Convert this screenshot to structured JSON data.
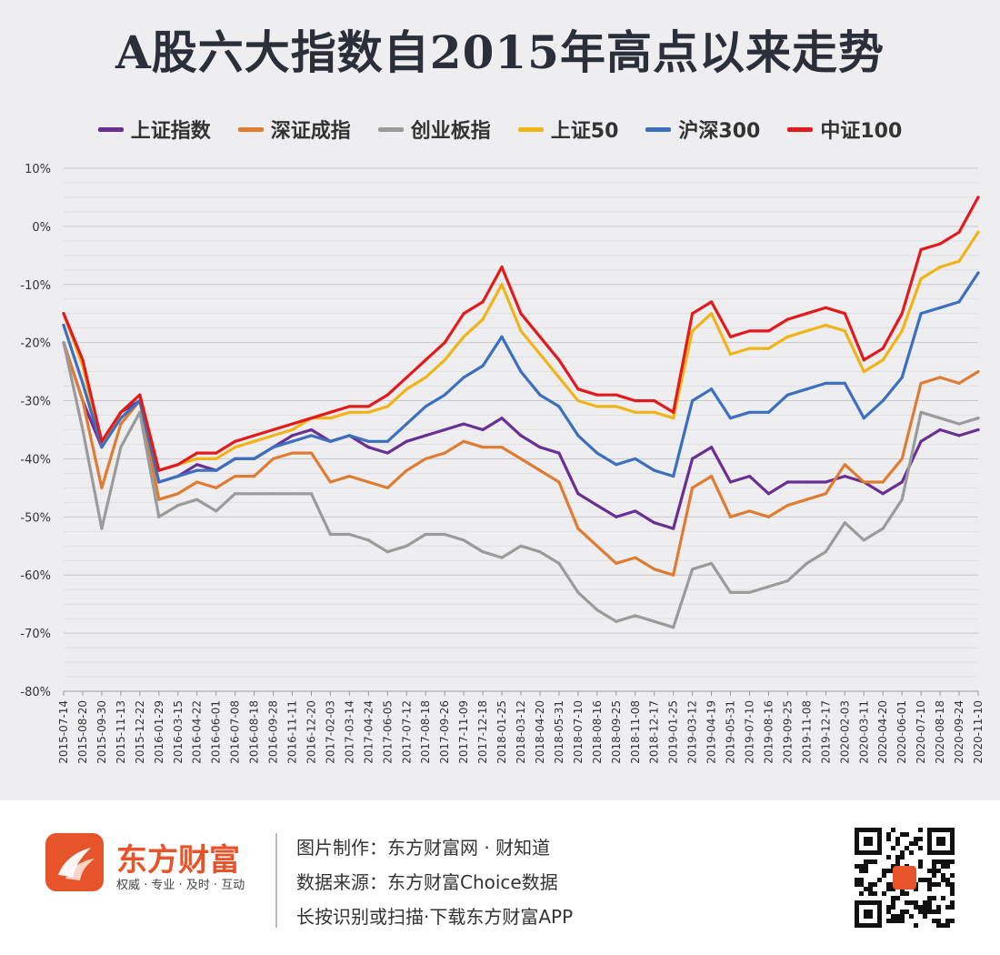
{
  "title": "A股六大指数自2015年高点以来走势",
  "colors": {
    "background": "#eeeef0",
    "brand": "#e8542a",
    "title": "#2b2f3a"
  },
  "footer": {
    "brand_name": "东方财富",
    "slogan": "权威 · 专业 · 及时 · 互动",
    "credit_made_by": "图片制作：东方财富网 · 财知道",
    "credit_source": "数据来源：东方财富Choice数据",
    "credit_download": "长按识别或扫描·下载东方财富APP",
    "logo_icon": "eastmoney-logo-icon",
    "qr_icon": "qr-code-icon"
  },
  "chart_data": {
    "type": "line",
    "title": "A股六大指数自2015年高点以来走势",
    "ylim": [
      -80,
      10
    ],
    "yticks": [
      "10%",
      "0%",
      "-10%",
      "-20%",
      "-30%",
      "-40%",
      "-50%",
      "-60%",
      "-70%",
      "-80%"
    ],
    "y_tick_values": [
      10,
      0,
      -10,
      -20,
      -30,
      -40,
      -50,
      -60,
      -70,
      -80
    ],
    "legend_position": "top",
    "grid": true,
    "x": [
      "2015-07-14",
      "2015-08-20",
      "2015-09-30",
      "2015-11-13",
      "2015-12-22",
      "2016-01-29",
      "2016-03-15",
      "2016-04-22",
      "2016-06-01",
      "2016-07-08",
      "2016-08-18",
      "2016-09-28",
      "2016-11-11",
      "2016-12-20",
      "2017-02-03",
      "2017-03-14",
      "2017-04-24",
      "2017-06-05",
      "2017-07-12",
      "2017-08-18",
      "2017-09-26",
      "2017-11-09",
      "2017-12-18",
      "2018-01-25",
      "2018-03-12",
      "2018-04-20",
      "2018-05-31",
      "2018-07-10",
      "2018-08-16",
      "2018-09-25",
      "2018-11-08",
      "2018-12-17",
      "2019-01-25",
      "2019-03-12",
      "2019-04-19",
      "2019-05-31",
      "2019-07-10",
      "2019-08-16",
      "2019-09-25",
      "2019-11-08",
      "2019-12-17",
      "2020-02-03",
      "2020-03-11",
      "2020-04-20",
      "2020-06-01",
      "2020-07-10",
      "2020-08-18",
      "2020-09-24",
      "2020-11-10"
    ],
    "series": [
      {
        "name": "上证指数",
        "color": "#6a2f93",
        "values": [
          -20,
          -30,
          -38,
          -32,
          -30,
          -44,
          -43,
          -41,
          -42,
          -40,
          -40,
          -38,
          -36,
          -35,
          -37,
          -36,
          -38,
          -39,
          -37,
          -36,
          -35,
          -34,
          -35,
          -33,
          -36,
          -38,
          -39,
          -46,
          -48,
          -50,
          -49,
          -51,
          -52,
          -40,
          -38,
          -44,
          -43,
          -46,
          -44,
          -44,
          -44,
          -43,
          -44,
          -46,
          -44,
          -37,
          -35,
          -36,
          -35
        ]
      },
      {
        "name": "深证成指",
        "color": "#e07b32",
        "values": [
          -20,
          -30,
          -45,
          -34,
          -30,
          -47,
          -46,
          -44,
          -45,
          -43,
          -43,
          -40,
          -39,
          -39,
          -44,
          -43,
          -44,
          -45,
          -42,
          -40,
          -39,
          -37,
          -38,
          -38,
          -40,
          -42,
          -44,
          -52,
          -55,
          -58,
          -57,
          -59,
          -60,
          -45,
          -43,
          -50,
          -49,
          -50,
          -48,
          -47,
          -46,
          -41,
          -44,
          -44,
          -40,
          -27,
          -26,
          -27,
          -25
        ]
      },
      {
        "name": "创业板指",
        "color": "#9b9b9b",
        "values": [
          -20,
          -35,
          -52,
          -38,
          -32,
          -50,
          -48,
          -47,
          -49,
          -46,
          -46,
          -46,
          -46,
          -46,
          -53,
          -53,
          -54,
          -56,
          -55,
          -53,
          -53,
          -54,
          -56,
          -57,
          -55,
          -56,
          -58,
          -63,
          -66,
          -68,
          -67,
          -68,
          -69,
          -59,
          -58,
          -63,
          -63,
          -62,
          -61,
          -58,
          -56,
          -51,
          -54,
          -52,
          -47,
          -32,
          -33,
          -34,
          -33
        ]
      },
      {
        "name": "上证50",
        "color": "#f0b416",
        "values": [
          -15,
          -24,
          -38,
          -32,
          -29,
          -42,
          -41,
          -40,
          -40,
          -38,
          -37,
          -36,
          -35,
          -33,
          -33,
          -32,
          -32,
          -31,
          -28,
          -26,
          -23,
          -19,
          -16,
          -10,
          -18,
          -22,
          -26,
          -30,
          -31,
          -31,
          -32,
          -32,
          -33,
          -18,
          -15,
          -22,
          -21,
          -21,
          -19,
          -18,
          -17,
          -18,
          -25,
          -23,
          -18,
          -9,
          -7,
          -6,
          -1
        ]
      },
      {
        "name": "沪深300",
        "color": "#3d6fbf",
        "values": [
          -17,
          -27,
          -38,
          -33,
          -30,
          -44,
          -43,
          -42,
          -42,
          -40,
          -40,
          -38,
          -37,
          -36,
          -37,
          -36,
          -37,
          -37,
          -34,
          -31,
          -29,
          -26,
          -24,
          -19,
          -25,
          -29,
          -31,
          -36,
          -39,
          -41,
          -40,
          -42,
          -43,
          -30,
          -28,
          -33,
          -32,
          -32,
          -29,
          -28,
          -27,
          -27,
          -33,
          -30,
          -26,
          -15,
          -14,
          -13,
          -8
        ]
      },
      {
        "name": "中证100",
        "color": "#e31a1c",
        "values": [
          -15,
          -23,
          -37,
          -32,
          -29,
          -42,
          -41,
          -39,
          -39,
          -37,
          -36,
          -35,
          -34,
          -33,
          -32,
          -31,
          -31,
          -29,
          -26,
          -23,
          -20,
          -15,
          -13,
          -7,
          -15,
          -19,
          -23,
          -28,
          -29,
          -29,
          -30,
          -30,
          -32,
          -15,
          -13,
          -19,
          -18,
          -18,
          -16,
          -15,
          -14,
          -15,
          -23,
          -21,
          -15,
          -4,
          -3,
          -1,
          5
        ]
      }
    ]
  }
}
